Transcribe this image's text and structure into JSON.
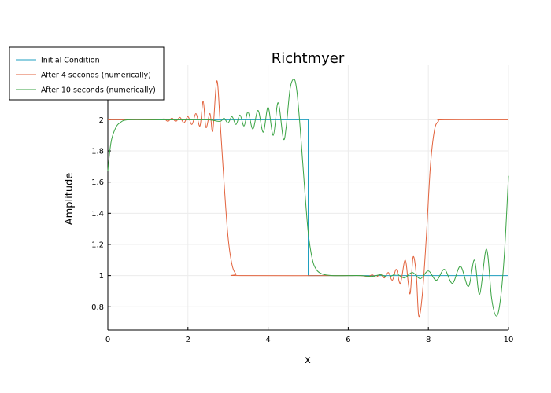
{
  "chart_data": {
    "type": "line",
    "title": "Richtmyer",
    "xlabel": "x",
    "ylabel": "Amplitude",
    "xlim": [
      0,
      10
    ],
    "ylim": [
      0.65,
      2.35
    ],
    "x_ticks": [
      "0",
      "2",
      "4",
      "6",
      "8",
      "10"
    ],
    "y_ticks": [
      "0.8",
      "1",
      "1.2",
      "1.4",
      "1.6",
      "1.8",
      "2"
    ],
    "grid": true,
    "legend_position": "top-left",
    "series": [
      {
        "name": "Initial Condition",
        "color": "#1f9fc0",
        "points": [
          [
            0,
            2
          ],
          [
            5,
            2
          ],
          [
            5,
            1
          ],
          [
            10,
            1
          ]
        ]
      },
      {
        "name": "After 4 seconds (numerically)",
        "color": "#e2623c",
        "points": [
          [
            0,
            2
          ],
          [
            0.6,
            2
          ],
          [
            1.2,
            2.0
          ],
          [
            1.4,
            2.005
          ],
          [
            1.5,
            1.99
          ],
          [
            1.6,
            2.01
          ],
          [
            1.7,
            1.99
          ],
          [
            1.8,
            2.015
          ],
          [
            1.9,
            1.98
          ],
          [
            2.0,
            2.02
          ],
          [
            2.1,
            1.97
          ],
          [
            2.2,
            2.04
          ],
          [
            2.3,
            1.96
          ],
          [
            2.38,
            2.12
          ],
          [
            2.45,
            1.95
          ],
          [
            2.55,
            2.04
          ],
          [
            2.62,
            1.93
          ],
          [
            2.72,
            2.25
          ],
          [
            2.8,
            2.0
          ],
          [
            2.9,
            1.6
          ],
          [
            3.0,
            1.25
          ],
          [
            3.1,
            1.07
          ],
          [
            3.2,
            1.01
          ],
          [
            3.3,
            1.0
          ],
          [
            6.0,
            1.0
          ],
          [
            6.3,
            1.0
          ],
          [
            6.5,
            0.995
          ],
          [
            6.6,
            1.005
          ],
          [
            6.7,
            0.99
          ],
          [
            6.8,
            1.01
          ],
          [
            6.9,
            0.985
          ],
          [
            7.0,
            1.02
          ],
          [
            7.1,
            0.97
          ],
          [
            7.2,
            1.04
          ],
          [
            7.3,
            0.95
          ],
          [
            7.42,
            1.1
          ],
          [
            7.5,
            0.95
          ],
          [
            7.55,
            0.89
          ],
          [
            7.62,
            1.12
          ],
          [
            7.7,
            1.0
          ],
          [
            7.76,
            0.74
          ],
          [
            7.85,
            0.88
          ],
          [
            7.95,
            1.25
          ],
          [
            8.05,
            1.7
          ],
          [
            8.15,
            1.93
          ],
          [
            8.25,
            1.99
          ],
          [
            8.4,
            2.0
          ],
          [
            10,
            2.0
          ]
        ]
      },
      {
        "name": "After 10 seconds (numerically)",
        "color": "#3aa343",
        "points": [
          [
            0,
            1.67
          ],
          [
            0.05,
            1.8
          ],
          [
            0.1,
            1.88
          ],
          [
            0.2,
            1.95
          ],
          [
            0.3,
            1.98
          ],
          [
            0.5,
            2.0
          ],
          [
            1.2,
            2.0
          ],
          [
            1.5,
            2.0
          ],
          [
            2.0,
            2.0
          ],
          [
            2.5,
            2.0
          ],
          [
            2.8,
            1.99
          ],
          [
            2.9,
            2.01
          ],
          [
            3.0,
            1.98
          ],
          [
            3.1,
            2.02
          ],
          [
            3.2,
            1.97
          ],
          [
            3.3,
            2.03
          ],
          [
            3.4,
            1.96
          ],
          [
            3.5,
            2.05
          ],
          [
            3.62,
            1.94
          ],
          [
            3.75,
            2.06
          ],
          [
            3.88,
            1.92
          ],
          [
            4.0,
            2.08
          ],
          [
            4.13,
            1.9
          ],
          [
            4.25,
            2.11
          ],
          [
            4.38,
            1.88
          ],
          [
            4.45,
            1.95
          ],
          [
            4.55,
            2.2
          ],
          [
            4.65,
            2.26
          ],
          [
            4.72,
            2.18
          ],
          [
            4.8,
            1.95
          ],
          [
            4.9,
            1.6
          ],
          [
            5.0,
            1.28
          ],
          [
            5.1,
            1.11
          ],
          [
            5.2,
            1.04
          ],
          [
            5.35,
            1.01
          ],
          [
            5.6,
            1.0
          ],
          [
            6.0,
            1.0
          ],
          [
            6.3,
            1.0
          ],
          [
            6.6,
            0.995
          ],
          [
            6.8,
            1.005
          ],
          [
            7.0,
            0.99
          ],
          [
            7.2,
            1.01
          ],
          [
            7.4,
            0.985
          ],
          [
            7.6,
            1.02
          ],
          [
            7.8,
            0.98
          ],
          [
            8.0,
            1.03
          ],
          [
            8.2,
            0.97
          ],
          [
            8.4,
            1.04
          ],
          [
            8.6,
            0.95
          ],
          [
            8.8,
            1.06
          ],
          [
            9.0,
            0.93
          ],
          [
            9.15,
            1.1
          ],
          [
            9.28,
            0.88
          ],
          [
            9.45,
            1.17
          ],
          [
            9.58,
            0.85
          ],
          [
            9.7,
            0.74
          ],
          [
            9.8,
            0.85
          ],
          [
            9.9,
            1.15
          ],
          [
            10.0,
            1.64
          ]
        ]
      }
    ]
  }
}
